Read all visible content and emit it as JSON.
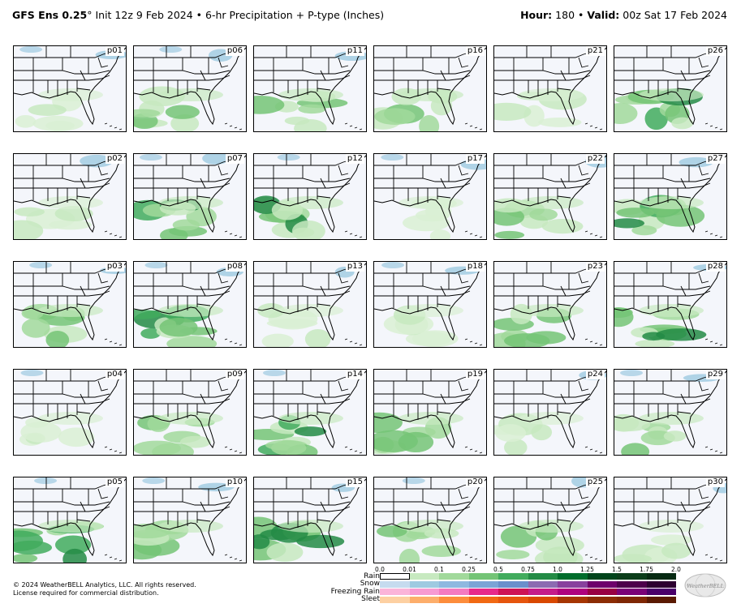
{
  "header": {
    "model": "GFS Ens 0.25",
    "degree": "°",
    "init": " Init 12z 9 Feb 2024",
    "bullet": " • ",
    "product": "6-hr Precipitation + P-type (Inches)",
    "hour_label": "Hour:",
    "hour_value": " 180 ",
    "bullet2": "• ",
    "valid_label": "Valid:",
    "valid_value": " 00z Sat 17 Feb 2024"
  },
  "panels": [
    {
      "label": "p01",
      "precip": "light"
    },
    {
      "label": "p06",
      "precip": "moderate"
    },
    {
      "label": "p11",
      "precip": "moderate"
    },
    {
      "label": "p16",
      "precip": "moderate"
    },
    {
      "label": "p21",
      "precip": "light"
    },
    {
      "label": "p26",
      "precip": "heavy"
    },
    {
      "label": "p02",
      "precip": "light"
    },
    {
      "label": "p07",
      "precip": "heavy"
    },
    {
      "label": "p12",
      "precip": "heavy"
    },
    {
      "label": "p17",
      "precip": "light"
    },
    {
      "label": "p22",
      "precip": "moderate"
    },
    {
      "label": "p27",
      "precip": "heavy"
    },
    {
      "label": "p03",
      "precip": "moderate"
    },
    {
      "label": "p08",
      "precip": "heavy"
    },
    {
      "label": "p13",
      "precip": "light"
    },
    {
      "label": "p18",
      "precip": "light"
    },
    {
      "label": "p23",
      "precip": "moderate"
    },
    {
      "label": "p28",
      "precip": "heavy"
    },
    {
      "label": "p04",
      "precip": "light"
    },
    {
      "label": "p09",
      "precip": "moderate"
    },
    {
      "label": "p14",
      "precip": "heavy"
    },
    {
      "label": "p19",
      "precip": "moderate"
    },
    {
      "label": "p24",
      "precip": "light"
    },
    {
      "label": "p29",
      "precip": "moderate"
    },
    {
      "label": "p05",
      "precip": "heavy"
    },
    {
      "label": "p10",
      "precip": "moderate"
    },
    {
      "label": "p15",
      "precip": "heavy"
    },
    {
      "label": "p20",
      "precip": "moderate"
    },
    {
      "label": "p25",
      "precip": "moderate"
    },
    {
      "label": "p30",
      "precip": "light"
    }
  ],
  "legend": {
    "ticks": [
      "0.0",
      "0.01",
      "0.1",
      "0.25",
      "0.5",
      "0.75",
      "1.0",
      "1.25",
      "1.5",
      "1.75",
      "2.0"
    ],
    "rows": [
      {
        "label": "Rain",
        "colors": [
          "#ffffff",
          "#c7e9c0",
          "#a1d99b",
          "#74c476",
          "#41ab5d",
          "#238b45",
          "#006d2c",
          "#00441b",
          "#0b3d1a",
          "#062a12"
        ]
      },
      {
        "label": "Snow",
        "colors": [
          "#c6dbef",
          "#9ecae1",
          "#8fb8e0",
          "#7ba4d6",
          "#6a8fcc",
          "#8c6bb1",
          "#88419d",
          "#6e016b",
          "#4d004b",
          "#2d0030"
        ]
      },
      {
        "label": "Freezing Rain",
        "colors": [
          "#fbb4d9",
          "#f79ad2",
          "#f47ac0",
          "#e7298a",
          "#ce1256",
          "#c51b8a",
          "#ae017e",
          "#980043",
          "#7a0177",
          "#49006a"
        ]
      },
      {
        "label": "Sleet",
        "colors": [
          "#fdd0a2",
          "#fdae6b",
          "#fd8d3c",
          "#f16913",
          "#e6550d",
          "#d94801",
          "#a63603",
          "#8c2d04",
          "#7f2704",
          "#5a1a02"
        ]
      }
    ]
  },
  "footer": {
    "copyright": "© 2024 WeatherBELL Analytics, LLC. All rights reserved.",
    "license": "License required for commercial distribution."
  },
  "logo": {
    "text": "WeatherBELL",
    "icon": "bell-globe-icon"
  }
}
